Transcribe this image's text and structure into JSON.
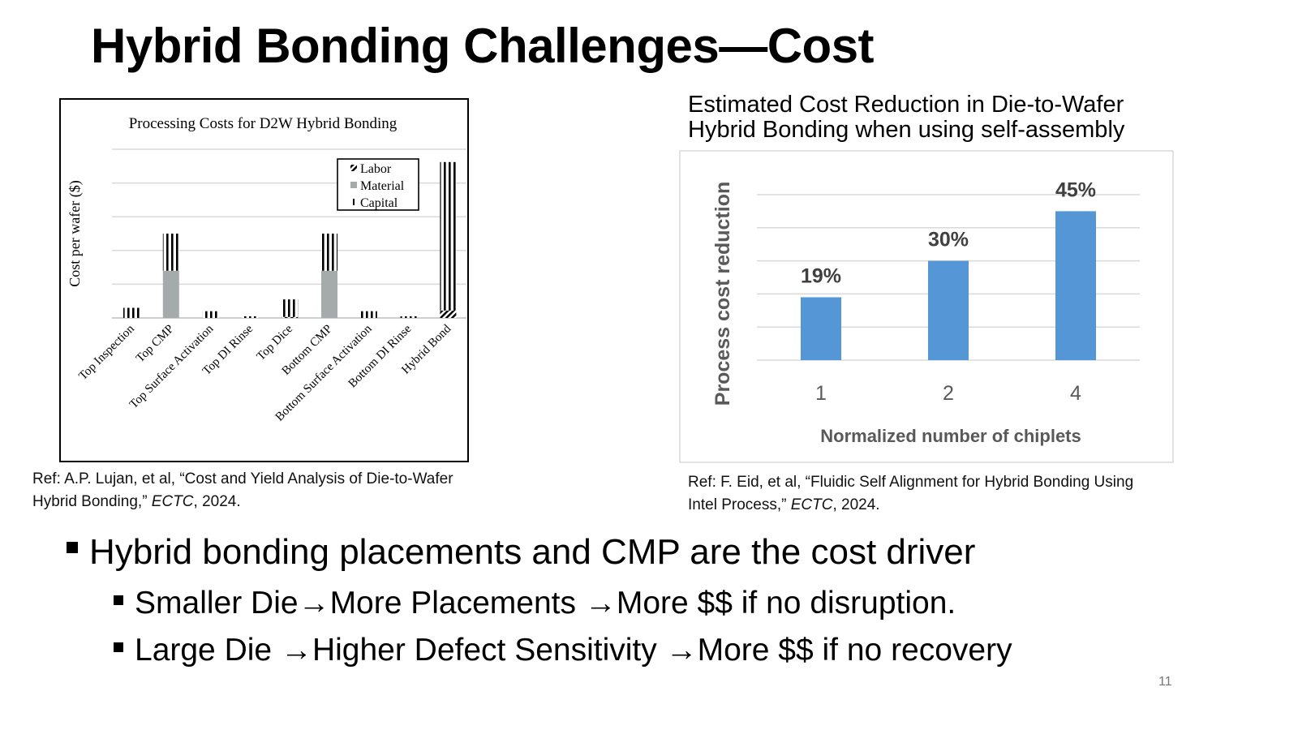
{
  "title": "Hybrid Bonding Challenges—Cost",
  "page_number": "11",
  "chart_data": [
    {
      "type": "bar",
      "stacked": true,
      "title": "Processing Costs for D2W Hybrid Bonding",
      "xlabel": "",
      "ylabel": "Cost per wafer ($)",
      "categories": [
        "Top Inspection",
        "Top CMP",
        "Top Surface Activation",
        "Top DI Rinse",
        "Top Dice",
        "Bottom CMP",
        "Bottom Surface Activation",
        "Bottom DI Rinse",
        "Hybrid Bond"
      ],
      "series": [
        {
          "name": "Labor",
          "pattern": "diagonal-hatch",
          "values": [
            0,
            0,
            0,
            0,
            0.03,
            0,
            0,
            0,
            0.22
          ]
        },
        {
          "name": "Material",
          "color": "#a5abab",
          "values": [
            0,
            1.4,
            0,
            0,
            0,
            1.4,
            0,
            0,
            0
          ]
        },
        {
          "name": "Capital",
          "pattern": "vertical-lines",
          "values": [
            0.3,
            1.1,
            0.2,
            0.05,
            0.52,
            1.1,
            0.2,
            0.05,
            4.4
          ]
        }
      ],
      "ylim": [
        0,
        5
      ],
      "y_ticks_shown": false,
      "grid": true,
      "legend_position": "top-right"
    },
    {
      "type": "bar",
      "title": "Estimated Cost Reduction in Die-to-Wafer Hybrid Bonding when using self-assembly",
      "xlabel": "Normalized number of chiplets",
      "ylabel": "Process cost reduction",
      "categories": [
        "1",
        "2",
        "4"
      ],
      "values": [
        19,
        30,
        45
      ],
      "data_labels": [
        "19%",
        "30%",
        "45%"
      ],
      "color": "#5596d6",
      "ylim": [
        0,
        50
      ],
      "y_ticks_shown": false,
      "grid": true
    }
  ],
  "refs": {
    "left": {
      "line1": "Ref: A.P. Lujan, et al, “Cost and Yield Analysis of Die-to-Wafer",
      "line2a": "Hybrid Bonding,” ",
      "venue": "ECTC",
      "line2b": ", 2024."
    },
    "right": {
      "line1": "Ref: F. Eid, et al, “Fluidic Self Alignment for Hybrid Bonding Using",
      "line2a": "Intel Process,” ",
      "venue": "ECTC",
      "line2b": ", 2024."
    }
  },
  "bullets": {
    "main": "Hybrid bonding placements and CMP are the cost driver",
    "sub": [
      {
        "a": "Smaller Die",
        "b": "More Placements ",
        "c": "More $$ if no disruption."
      },
      {
        "a": "Large Die ",
        "b": "Higher Defect Sensitivity ",
        "c": "More $$ if no recovery"
      }
    ],
    "arrow": "→"
  }
}
